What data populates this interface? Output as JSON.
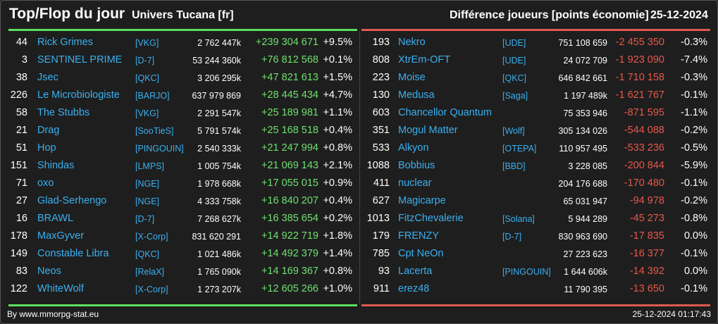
{
  "header": {
    "title": "Top/Flop du jour",
    "universe": "Univers Tucana [fr]",
    "metric": "Différence joueurs [points économie]",
    "date": "25-12-2024"
  },
  "colors": {
    "top_bar": "#5ee05e",
    "flop_bar": "#e05a50",
    "gain": "#6ee06e",
    "loss": "#e8574a",
    "link": "#3ab0f0",
    "background": "#1e1e1e"
  },
  "top": [
    {
      "rank": "44",
      "name": "Rick Grimes",
      "alliance": "[VKG]",
      "score": "2 762 447k",
      "diff": "+239 304 671",
      "pct": "+9.5%"
    },
    {
      "rank": "3",
      "name": "SENTINEL PRIME",
      "alliance": "[D-7]",
      "score": "53 244 360k",
      "diff": "+76 812 568",
      "pct": "+0.1%"
    },
    {
      "rank": "38",
      "name": "Jsec",
      "alliance": "[QKC]",
      "score": "3 206 295k",
      "diff": "+47 821 613",
      "pct": "+1.5%"
    },
    {
      "rank": "226",
      "name": "Le Microbiologiste",
      "alliance": "[BARJO]",
      "score": "637 979 869",
      "diff": "+28 445 434",
      "pct": "+4.7%"
    },
    {
      "rank": "58",
      "name": "The Stubbs",
      "alliance": "[VKG]",
      "score": "2 291 547k",
      "diff": "+25 189 981",
      "pct": "+1.1%"
    },
    {
      "rank": "21",
      "name": "Drag",
      "alliance": "[SooTieS]",
      "score": "5 791 574k",
      "diff": "+25 168 518",
      "pct": "+0.4%"
    },
    {
      "rank": "51",
      "name": "Hop",
      "alliance": "[PINGOUIN]",
      "score": "2 540 333k",
      "diff": "+21 247 994",
      "pct": "+0.8%"
    },
    {
      "rank": "151",
      "name": "Shindas",
      "alliance": "[LMPS]",
      "score": "1 005 754k",
      "diff": "+21 069 143",
      "pct": "+2.1%"
    },
    {
      "rank": "71",
      "name": "oxo",
      "alliance": "[NGE]",
      "score": "1 978 668k",
      "diff": "+17 055 015",
      "pct": "+0.9%"
    },
    {
      "rank": "27",
      "name": "Glad-Serhengo",
      "alliance": "[NGE]",
      "score": "4 333 758k",
      "diff": "+16 840 207",
      "pct": "+0.4%"
    },
    {
      "rank": "16",
      "name": "BRAWL",
      "alliance": "[D-7]",
      "score": "7 268 627k",
      "diff": "+16 385 654",
      "pct": "+0.2%"
    },
    {
      "rank": "178",
      "name": "MaxGyver",
      "alliance": "[X-Corp]",
      "score": "831 620 291",
      "diff": "+14 922 719",
      "pct": "+1.8%"
    },
    {
      "rank": "149",
      "name": "Constable Libra",
      "alliance": "[QKC]",
      "score": "1 021 486k",
      "diff": "+14 492 379",
      "pct": "+1.4%"
    },
    {
      "rank": "83",
      "name": "Neos",
      "alliance": "[RelaX]",
      "score": "1 765 090k",
      "diff": "+14 169 367",
      "pct": "+0.8%"
    },
    {
      "rank": "122",
      "name": "WhiteWolf",
      "alliance": "[X-Corp]",
      "score": "1 273 207k",
      "diff": "+12 605 266",
      "pct": "+1.0%"
    }
  ],
  "flop": [
    {
      "rank": "193",
      "name": "Nekro",
      "alliance": "[UDE]",
      "score": "751 108 659",
      "diff": "-2 455 350",
      "pct": "-0.3%"
    },
    {
      "rank": "808",
      "name": "XtrEm-OFT",
      "alliance": "[UDE]",
      "score": "24 072 709",
      "diff": "-1 923 090",
      "pct": "-7.4%"
    },
    {
      "rank": "223",
      "name": "Moise",
      "alliance": "[QKC]",
      "score": "646 842 661",
      "diff": "-1 710 158",
      "pct": "-0.3%"
    },
    {
      "rank": "130",
      "name": "Medusa",
      "alliance": "[Saga]",
      "score": "1 197 489k",
      "diff": "-1 621 767",
      "pct": "-0.1%"
    },
    {
      "rank": "603",
      "name": "Chancellor Quantum",
      "alliance": "",
      "score": "75 353 946",
      "diff": "-871 595",
      "pct": "-1.1%"
    },
    {
      "rank": "351",
      "name": "Mogul Matter",
      "alliance": "[Wolf]",
      "score": "305 134 026",
      "diff": "-544 088",
      "pct": "-0.2%"
    },
    {
      "rank": "533",
      "name": "Alkyon",
      "alliance": "[OTEPA]",
      "score": "110 957 495",
      "diff": "-533 236",
      "pct": "-0.5%"
    },
    {
      "rank": "1088",
      "name": "Bobbius",
      "alliance": "[BBD]",
      "score": "3 228 085",
      "diff": "-200 844",
      "pct": "-5.9%"
    },
    {
      "rank": "411",
      "name": "nuclear",
      "alliance": "",
      "score": "204 176 688",
      "diff": "-170 480",
      "pct": "-0.1%"
    },
    {
      "rank": "627",
      "name": "Magicarpe",
      "alliance": "",
      "score": "65 031 947",
      "diff": "-94 978",
      "pct": "-0.2%"
    },
    {
      "rank": "1013",
      "name": "FitzChevalerie",
      "alliance": "[Solana]",
      "score": "5 944 289",
      "diff": "-45 273",
      "pct": "-0.8%"
    },
    {
      "rank": "179",
      "name": "FRENZY",
      "alliance": "[D-7]",
      "score": "830 963 690",
      "diff": "-17 835",
      "pct": "0.0%"
    },
    {
      "rank": "785",
      "name": "Cpt NeOn",
      "alliance": "",
      "score": "27 223 623",
      "diff": "-16 377",
      "pct": "-0.1%"
    },
    {
      "rank": "93",
      "name": "Lacerta",
      "alliance": "[PINGOUIN]",
      "score": "1 644 606k",
      "diff": "-14 392",
      "pct": "0.0%"
    },
    {
      "rank": "911",
      "name": "erez48",
      "alliance": "",
      "score": "11 790 395",
      "diff": "-13 650",
      "pct": "-0.1%"
    }
  ],
  "footer": {
    "source": "By www.mmorpg-stat.eu",
    "timestamp": "25-12-2024 01:17:43"
  }
}
